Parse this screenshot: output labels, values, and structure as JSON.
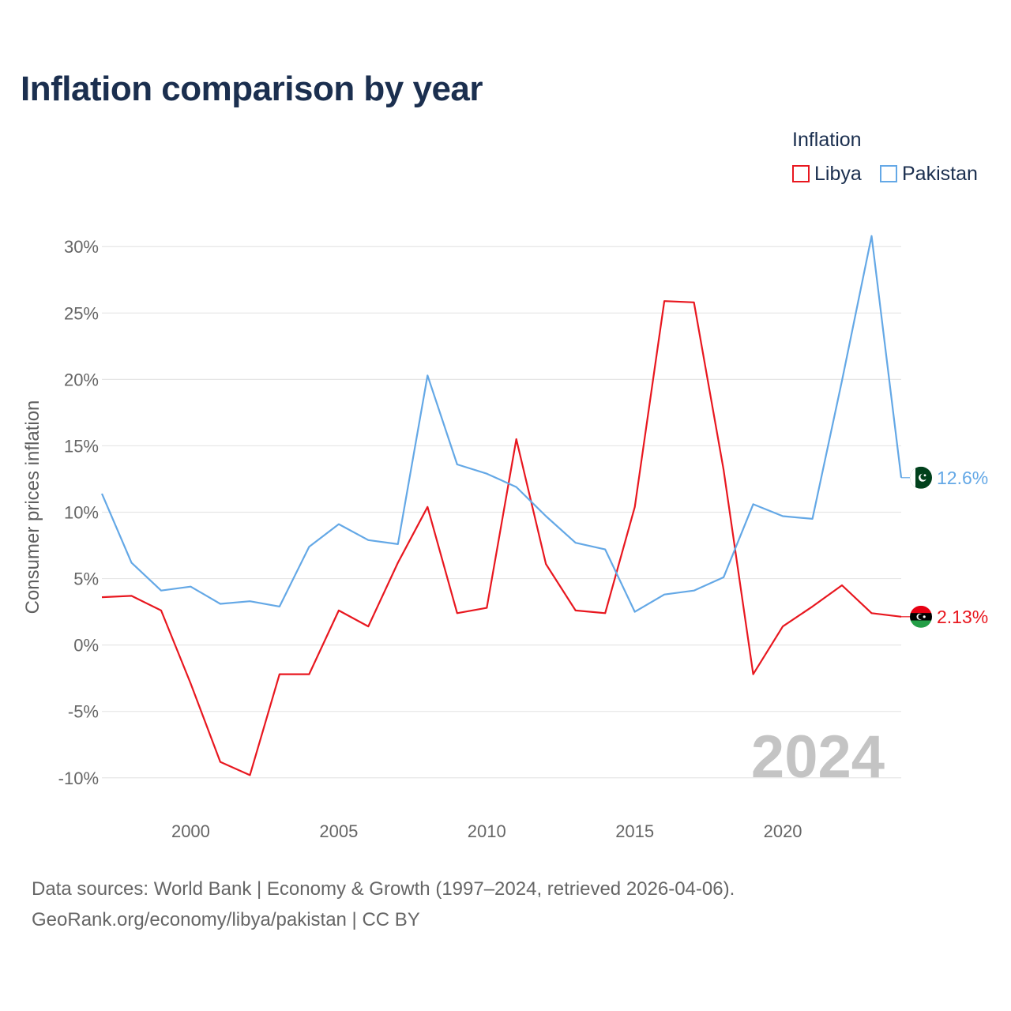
{
  "title": "Inflation comparison by year",
  "legend": {
    "title": "Inflation",
    "items": [
      {
        "label": "Libya",
        "color": "#e8171f"
      },
      {
        "label": "Pakistan",
        "color": "#64a8e6"
      }
    ]
  },
  "year_watermark": "2024",
  "source": {
    "line1": "Data sources: World Bank | Economy & Growth (1997–2024, retrieved 2026-04-06).",
    "line2": "GeoRank.org/economy/libya/pakistan | CC BY"
  },
  "chart_data": {
    "type": "line",
    "title": "Inflation comparison by year",
    "xlabel": "",
    "ylabel": "Consumer prices inflation",
    "x": [
      1997,
      1998,
      1999,
      2000,
      2001,
      2002,
      2003,
      2004,
      2005,
      2006,
      2007,
      2008,
      2009,
      2010,
      2011,
      2012,
      2013,
      2014,
      2015,
      2016,
      2017,
      2018,
      2019,
      2020,
      2021,
      2022,
      2023,
      2024
    ],
    "xlim": [
      1997,
      2024
    ],
    "ylim": [
      -11.5,
      31.5
    ],
    "xticks": [
      2000,
      2005,
      2010,
      2015,
      2020
    ],
    "xtick_labels": [
      "2000",
      "2005",
      "2010",
      "2015",
      "2020"
    ],
    "yticks": [
      -10,
      -5,
      0,
      5,
      10,
      15,
      20,
      25,
      30
    ],
    "ytick_labels": [
      "-10%",
      "-5%",
      "0%",
      "5%",
      "10%",
      "15%",
      "20%",
      "25%",
      "30%"
    ],
    "grid": true,
    "legend_position": "top-right",
    "series": [
      {
        "name": "Libya",
        "color": "#e8171f",
        "end_label": "2.13%",
        "flag": "libya-flag",
        "values": [
          3.6,
          3.7,
          2.6,
          -2.9,
          -8.8,
          -9.8,
          -2.2,
          -2.2,
          2.6,
          1.4,
          6.2,
          10.4,
          2.4,
          2.8,
          15.5,
          6.1,
          2.6,
          2.4,
          10.4,
          25.9,
          25.8,
          13.2,
          -2.2,
          1.4,
          2.9,
          4.5,
          2.4,
          2.13
        ]
      },
      {
        "name": "Pakistan",
        "color": "#64a8e6",
        "end_label": "12.6%",
        "flag": "pakistan-flag",
        "values": [
          11.4,
          6.2,
          4.1,
          4.4,
          3.1,
          3.3,
          2.9,
          7.4,
          9.1,
          7.9,
          7.6,
          20.3,
          13.6,
          12.9,
          11.9,
          9.7,
          7.7,
          7.2,
          2.5,
          3.8,
          4.1,
          5.1,
          10.6,
          9.7,
          9.5,
          19.9,
          30.8,
          12.6
        ]
      }
    ]
  }
}
